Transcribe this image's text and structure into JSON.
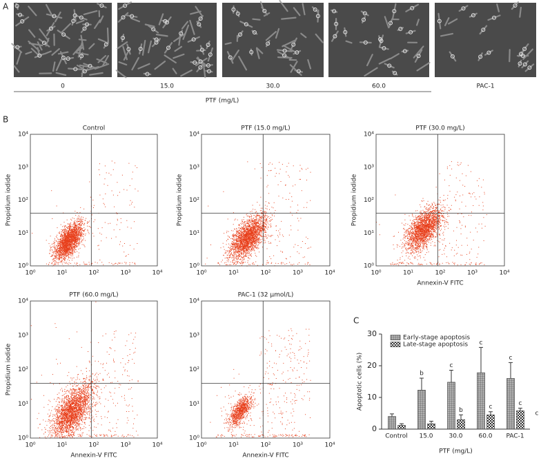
{
  "panel_a": {
    "label": "A",
    "labels": [
      "0",
      "15.0",
      "30.0",
      "60.0",
      "PAC-1"
    ],
    "axis_label": "PTF (mg/L)"
  },
  "panel_b": {
    "label": "B",
    "ticks": [
      "10⁰",
      "10¹",
      "10²",
      "10³",
      "10⁴"
    ],
    "plots": [
      {
        "title": "Control",
        "y_label": "Propidium iodide"
      },
      {
        "title": "PTF (15.0 mg/L)",
        "y_label": "Propidium iodide"
      },
      {
        "title": "PTF (30.0 mg/L)",
        "y_label": "Propidium iodide",
        "x_label": "Annexin-V FITC"
      },
      {
        "title": "PTF (60.0 mg/L)",
        "y_label": "Propidium iodide",
        "x_label": "Annexin-V FITC"
      },
      {
        "title": "PAC-1 (32 µmol/L)",
        "x_label": "Annexin-V FITC"
      }
    ]
  },
  "chart_data": {
    "type": "bar",
    "label": "C",
    "y_label": "Apoptotic cells (%)",
    "x_label": "PTF (mg/L)",
    "categories": [
      "Control",
      "15.0",
      "30.0",
      "60.0",
      "PAC-1"
    ],
    "series": [
      {
        "name": "Early-stage apoptosis",
        "color": "#9a9a9a",
        "values": [
          4,
          12.3,
          14.8,
          17.8,
          16
        ],
        "errors": [
          0.8,
          3.8,
          3.8,
          8,
          5
        ],
        "annotations": [
          null,
          "b",
          "c",
          "c",
          "c"
        ]
      },
      {
        "name": "Late-stage apoptosis",
        "color": "#d8d8d8",
        "values": [
          1.2,
          1.7,
          3,
          4.5,
          5.8
        ],
        "errors": [
          0.5,
          0.8,
          1.5,
          1,
          0.8
        ],
        "annotations": [
          null,
          null,
          "b",
          "c",
          "c"
        ]
      }
    ],
    "ylim": [
      0,
      30
    ],
    "yticks": [
      0,
      10,
      20,
      30
    ]
  },
  "edge_text": "c"
}
